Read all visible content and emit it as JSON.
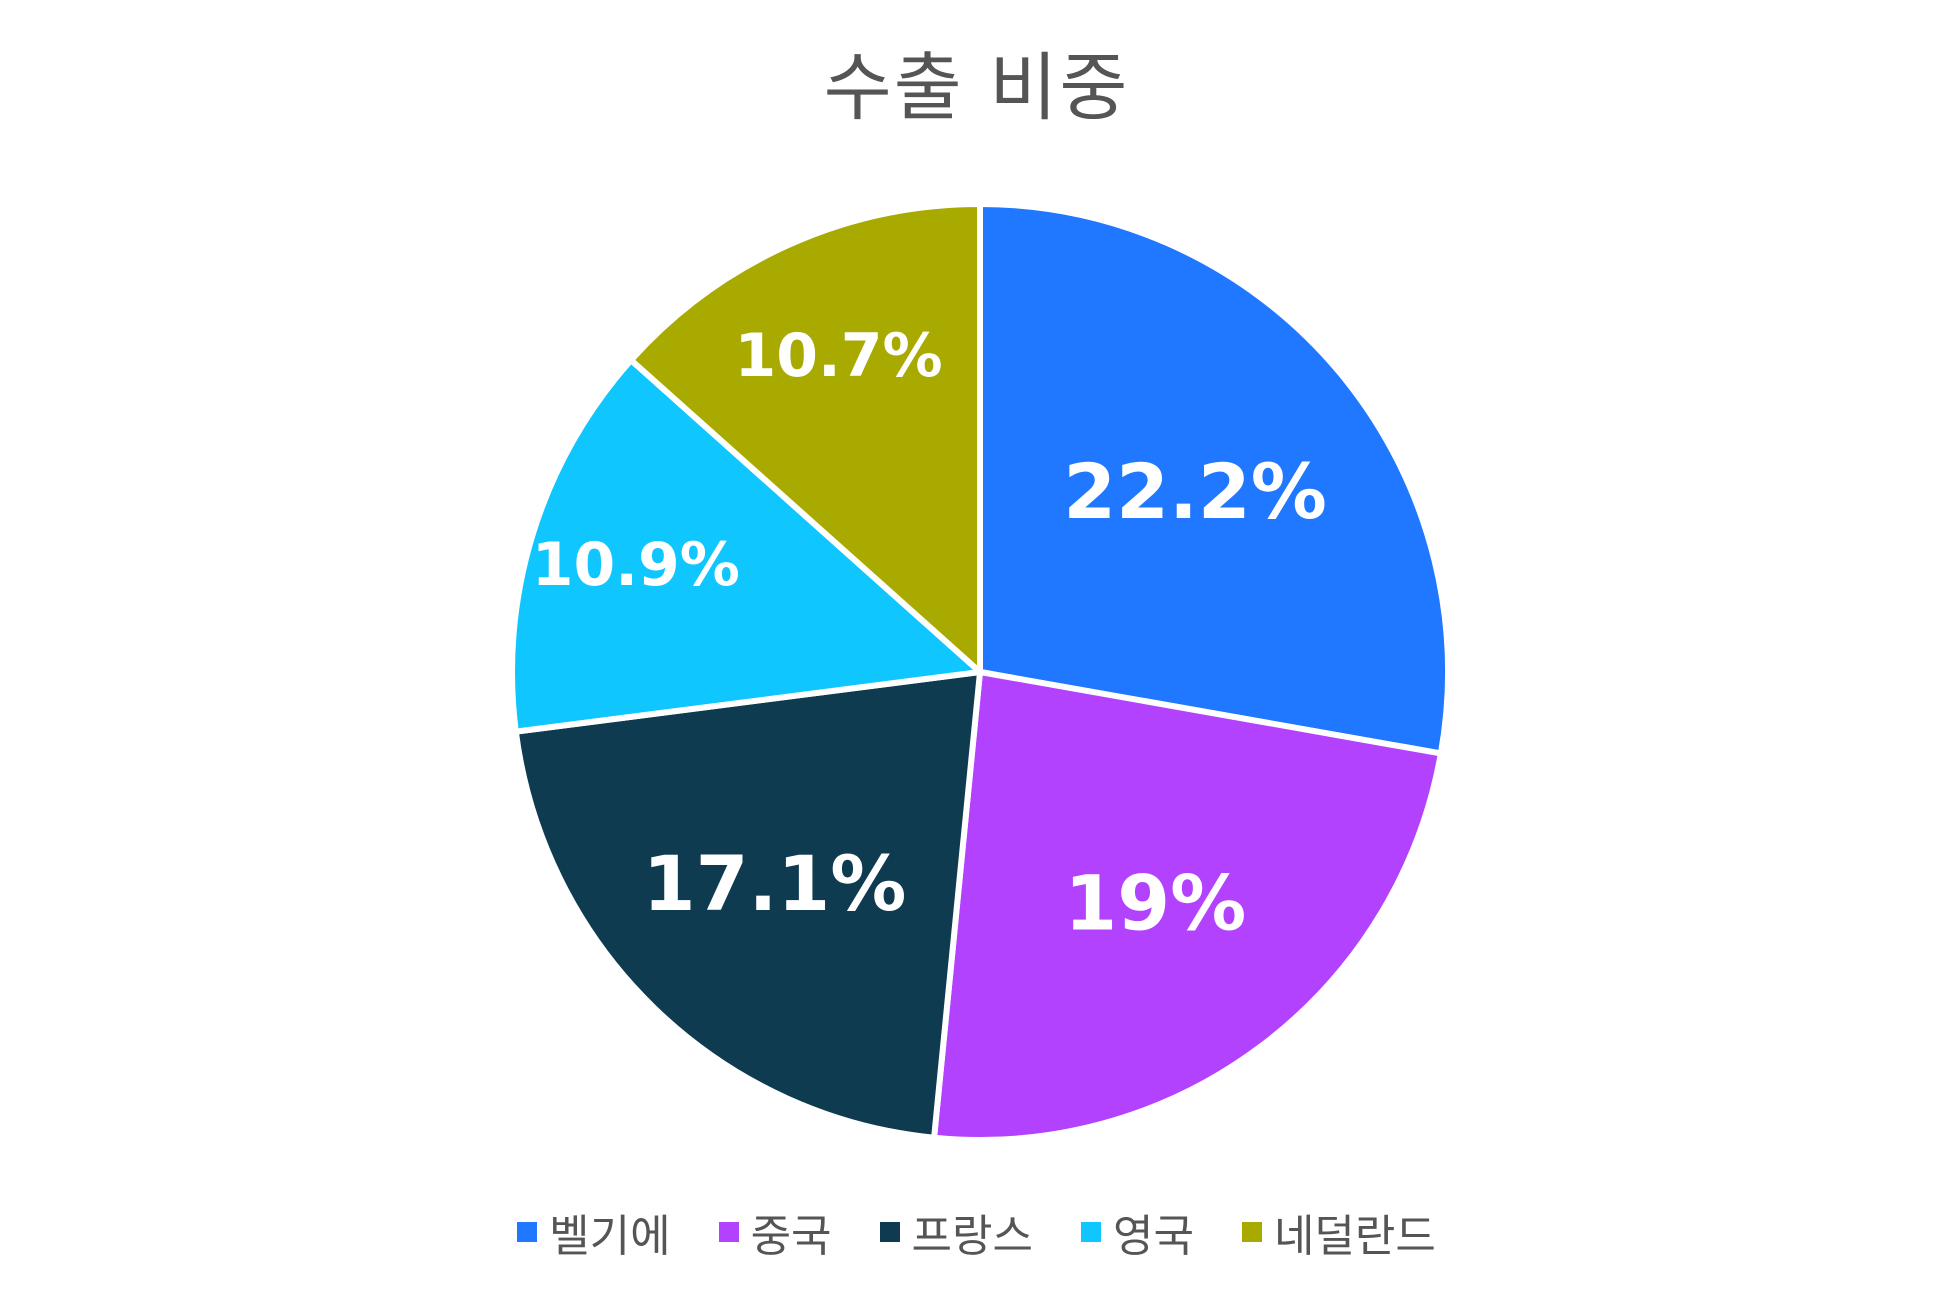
{
  "chart_data": {
    "type": "pie",
    "title": "수출 비중",
    "categories": [
      "벨기에",
      "중국",
      "프랑스",
      "영국",
      "네덜란드"
    ],
    "values": [
      22.2,
      19,
      17.1,
      10.9,
      10.7
    ],
    "labels": [
      "22.2%",
      "19%",
      "17.1%",
      "10.9%",
      "10.7%"
    ],
    "colors": [
      "#1F78FF",
      "#B342FF",
      "#0F3B50",
      "#10C6FF",
      "#A9AA00"
    ],
    "legend": "bottom"
  }
}
